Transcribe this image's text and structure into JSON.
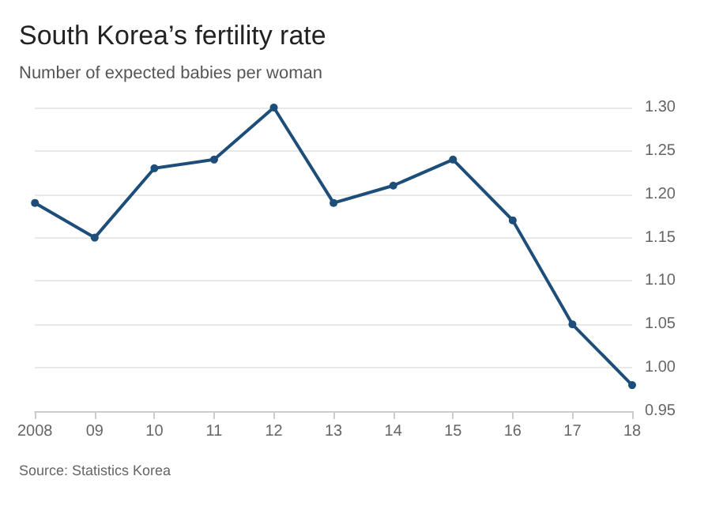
{
  "chart_data": {
    "type": "line",
    "title": "South Korea’s fertility rate",
    "subtitle": "Number of expected babies per woman",
    "categories": [
      "2008",
      "09",
      "10",
      "11",
      "12",
      "13",
      "14",
      "15",
      "16",
      "17",
      "18"
    ],
    "values": [
      1.19,
      1.15,
      1.23,
      1.24,
      1.3,
      1.19,
      1.21,
      1.24,
      1.17,
      1.05,
      0.98
    ],
    "color": "#1d4e79",
    "marker": "circle",
    "grid": "y",
    "ylim": [
      0.95,
      1.3
    ],
    "yticks": [
      {
        "value": 0.95,
        "label": "0.95"
      },
      {
        "value": 1.0,
        "label": "1.00"
      },
      {
        "value": 1.05,
        "label": "1.05"
      },
      {
        "value": 1.1,
        "label": "1.10"
      },
      {
        "value": 1.15,
        "label": "1.15"
      },
      {
        "value": 1.2,
        "label": "1.20"
      },
      {
        "value": 1.25,
        "label": "1.25"
      },
      {
        "value": 1.3,
        "label": "1.30"
      }
    ],
    "annotations": [
      "Source: Statistics Korea"
    ]
  }
}
